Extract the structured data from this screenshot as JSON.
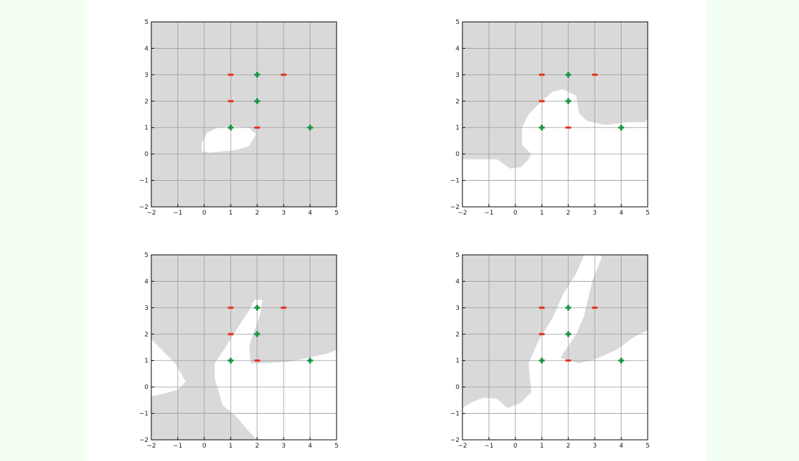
{
  "chart_data": [
    {
      "type": "scatter",
      "title": "",
      "xlabel": "",
      "ylabel": "",
      "xlim": [
        -2,
        5
      ],
      "ylim": [
        -2,
        5
      ],
      "grid": true,
      "x_ticks": [
        -2,
        -1,
        0,
        1,
        2,
        3,
        4,
        5
      ],
      "y_ticks": [
        -2,
        -1,
        0,
        1,
        2,
        3,
        4,
        5
      ],
      "tick_labels": [
        "−2",
        "−1",
        "0",
        "1",
        "2",
        "3",
        "4",
        "5"
      ],
      "colors": {
        "background_region": "#d9d9d9",
        "decision_region": "#ffffff",
        "positive": "#1a9641",
        "negative": "#e8301c"
      },
      "positive_points": [
        [
          1,
          1
        ],
        [
          2,
          2
        ],
        [
          2,
          3
        ],
        [
          4,
          1
        ]
      ],
      "negative_points": [
        [
          1,
          2
        ],
        [
          1,
          3
        ],
        [
          2,
          1
        ],
        [
          3,
          3
        ]
      ],
      "white_region": [
        [
          -0.1,
          0.4
        ],
        [
          0.1,
          0.8
        ],
        [
          0.5,
          1.0
        ],
        [
          1.0,
          1.05
        ],
        [
          1.7,
          1.0
        ],
        [
          1.95,
          0.75
        ],
        [
          1.7,
          0.3
        ],
        [
          1.2,
          0.15
        ],
        [
          0.2,
          0.05
        ],
        [
          -0.1,
          0.1
        ]
      ]
    },
    {
      "type": "scatter",
      "title": "",
      "xlabel": "",
      "ylabel": "",
      "xlim": [
        -2,
        5
      ],
      "ylim": [
        -2,
        5
      ],
      "grid": true,
      "x_ticks": [
        -2,
        -1,
        0,
        1,
        2,
        3,
        4,
        5
      ],
      "y_ticks": [
        -2,
        -1,
        0,
        1,
        2,
        3,
        4,
        5
      ],
      "tick_labels": [
        "−2",
        "−1",
        "0",
        "1",
        "2",
        "3",
        "4",
        "5"
      ],
      "colors": {
        "background_region": "#d9d9d9",
        "decision_region": "#ffffff",
        "positive": "#1a9641",
        "negative": "#e8301c"
      },
      "positive_points": [
        [
          1,
          1
        ],
        [
          2,
          2
        ],
        [
          2,
          3
        ],
        [
          4,
          1
        ]
      ],
      "negative_points": [
        [
          1,
          2
        ],
        [
          1,
          3
        ],
        [
          2,
          1
        ],
        [
          3,
          3
        ]
      ],
      "white_region": [
        [
          -2,
          -0.2
        ],
        [
          -0.7,
          -0.2
        ],
        [
          -0.2,
          -0.55
        ],
        [
          0.2,
          -0.5
        ],
        [
          0.5,
          -0.2
        ],
        [
          0.6,
          0.0
        ],
        [
          0.25,
          0.35
        ],
        [
          0.25,
          1.0
        ],
        [
          0.5,
          1.5
        ],
        [
          1.0,
          2.0
        ],
        [
          1.4,
          2.35
        ],
        [
          1.8,
          2.45
        ],
        [
          2.3,
          2.2
        ],
        [
          2.4,
          1.55
        ],
        [
          2.7,
          1.25
        ],
        [
          3.4,
          1.1
        ],
        [
          4.2,
          1.2
        ],
        [
          4.9,
          1.2
        ],
        [
          5,
          1.35
        ],
        [
          5,
          -2
        ],
        [
          -2,
          -2
        ]
      ]
    },
    {
      "type": "scatter",
      "title": "",
      "xlabel": "",
      "ylabel": "",
      "xlim": [
        -2,
        5
      ],
      "ylim": [
        -2,
        5
      ],
      "grid": true,
      "x_ticks": [
        -2,
        -1,
        0,
        1,
        2,
        3,
        4,
        5
      ],
      "y_ticks": [
        -2,
        -1,
        0,
        1,
        2,
        3,
        4,
        5
      ],
      "tick_labels": [
        "−2",
        "−1",
        "0",
        "1",
        "2",
        "3",
        "4",
        "5"
      ],
      "colors": {
        "background_region": "#d9d9d9",
        "decision_region": "#ffffff",
        "positive": "#1a9641",
        "negative": "#e8301c"
      },
      "positive_points": [
        [
          1,
          1
        ],
        [
          2,
          2
        ],
        [
          2,
          3
        ],
        [
          4,
          1
        ]
      ],
      "negative_points": [
        [
          1,
          2
        ],
        [
          1,
          3
        ],
        [
          2,
          1
        ],
        [
          3,
          3
        ]
      ],
      "white_regions": [
        [
          [
            -2,
            1.8
          ],
          [
            -1.6,
            1.4
          ],
          [
            -1.1,
            0.9
          ],
          [
            -0.7,
            0.2
          ],
          [
            -1.0,
            -0.1
          ],
          [
            -1.5,
            -0.25
          ],
          [
            -2,
            -0.35
          ]
        ],
        [
          [
            0.4,
            0.9
          ],
          [
            0.4,
            0.3
          ],
          [
            0.7,
            -0.7
          ],
          [
            1.2,
            -1.1
          ],
          [
            1.7,
            -1.7
          ],
          [
            2.0,
            -2
          ],
          [
            5,
            -2
          ],
          [
            5,
            1.4
          ],
          [
            4.6,
            1.25
          ],
          [
            3.2,
            0.95
          ],
          [
            2.2,
            0.9
          ],
          [
            1.75,
            0.9
          ],
          [
            1.7,
            1.6
          ],
          [
            2.1,
            2.7
          ],
          [
            2.2,
            3.3
          ],
          [
            1.9,
            3.3
          ],
          [
            1.7,
            2.9
          ],
          [
            1.3,
            2.3
          ],
          [
            0.8,
            1.5
          ]
        ]
      ]
    },
    {
      "type": "scatter",
      "title": "",
      "xlabel": "",
      "ylabel": "",
      "xlim": [
        -2,
        5
      ],
      "ylim": [
        -2,
        5
      ],
      "grid": true,
      "x_ticks": [
        -2,
        -1,
        0,
        1,
        2,
        3,
        4,
        5
      ],
      "y_ticks": [
        -2,
        -1,
        0,
        1,
        2,
        3,
        4,
        5
      ],
      "tick_labels": [
        "−2",
        "−1",
        "0",
        "1",
        "2",
        "3",
        "4",
        "5"
      ],
      "colors": {
        "background_region": "#d9d9d9",
        "decision_region": "#ffffff",
        "positive": "#1a9641",
        "negative": "#e8301c"
      },
      "positive_points": [
        [
          1,
          1
        ],
        [
          2,
          2
        ],
        [
          2,
          3
        ],
        [
          4,
          1
        ]
      ],
      "negative_points": [
        [
          1,
          2
        ],
        [
          1,
          3
        ],
        [
          2,
          1
        ],
        [
          3,
          3
        ]
      ],
      "white_region": [
        [
          -2,
          -0.8
        ],
        [
          -1.7,
          -0.6
        ],
        [
          -1.2,
          -0.4
        ],
        [
          -0.7,
          -0.45
        ],
        [
          -0.3,
          -0.8
        ],
        [
          0.2,
          -0.6
        ],
        [
          0.6,
          -0.2
        ],
        [
          0.5,
          0.9
        ],
        [
          0.9,
          1.8
        ],
        [
          1.4,
          2.6
        ],
        [
          1.8,
          3.5
        ],
        [
          2.3,
          4.3
        ],
        [
          2.6,
          5
        ],
        [
          3.3,
          5
        ],
        [
          2.9,
          4.0
        ],
        [
          2.6,
          2.7
        ],
        [
          2.3,
          2.0
        ],
        [
          1.7,
          1.1
        ],
        [
          2.4,
          0.9
        ],
        [
          3.0,
          1.05
        ],
        [
          3.8,
          1.4
        ],
        [
          4.5,
          1.9
        ],
        [
          5,
          2.15
        ],
        [
          5,
          -2
        ],
        [
          -2,
          -2
        ]
      ],
      "gray_regions": [
        [
          [
            2.6,
            5
          ],
          [
            5,
            5
          ],
          [
            5,
            2.15
          ],
          [
            4.5,
            1.9
          ],
          [
            3.8,
            1.4
          ],
          [
            3.0,
            1.05
          ],
          [
            2.4,
            0.9
          ],
          [
            2.9,
            1.6
          ],
          [
            3.2,
            2.4
          ],
          [
            3.5,
            3.5
          ],
          [
            3.6,
            4.4
          ],
          [
            3.2,
            5
          ]
        ]
      ]
    }
  ]
}
